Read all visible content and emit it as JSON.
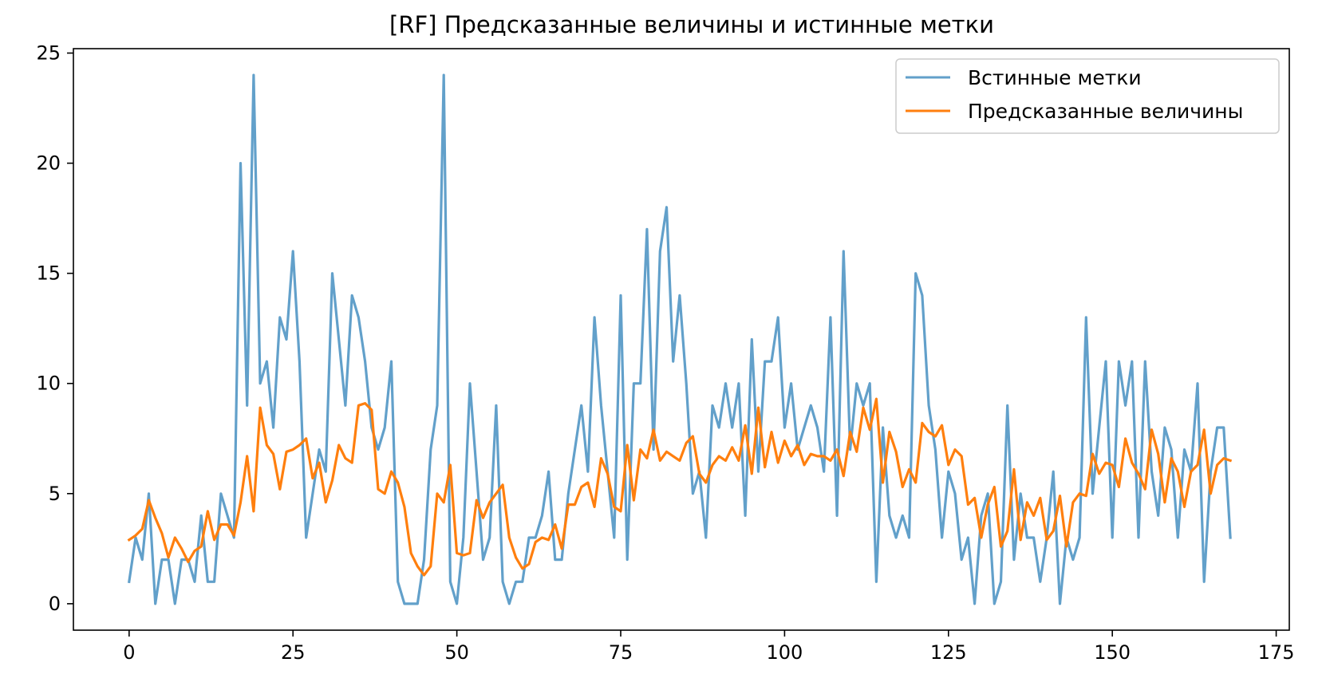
{
  "chart_data": {
    "type": "line",
    "title": "[RF] Предсказанные величины и истинные метки",
    "xlabel": "",
    "ylabel": "",
    "xlim": [
      -8.5,
      177
    ],
    "ylim": [
      -1.2,
      25.2
    ],
    "xticks": [
      0,
      25,
      50,
      75,
      100,
      125,
      150,
      175
    ],
    "yticks": [
      0,
      5,
      10,
      15,
      20,
      25
    ],
    "grid": false,
    "legend_position": "top-right",
    "series": [
      {
        "name": "Встинные метки",
        "color": "#1f77b4",
        "opacity": 0.7,
        "x_start": 0,
        "values": [
          1,
          3,
          2,
          5,
          0,
          2,
          2,
          0,
          2,
          2,
          1,
          4,
          1,
          1,
          5,
          4,
          3,
          20,
          9,
          24,
          10,
          11,
          8,
          13,
          12,
          16,
          11,
          3,
          5,
          7,
          6,
          15,
          12,
          9,
          14,
          13,
          11,
          8,
          7,
          8,
          11,
          1,
          0,
          0,
          0,
          2,
          7,
          9,
          24,
          1,
          0,
          3,
          10,
          6,
          2,
          3,
          9,
          1,
          0,
          1,
          1,
          3,
          3,
          4,
          6,
          2,
          2,
          5,
          7,
          9,
          6,
          13,
          9,
          6,
          3,
          14,
          2,
          10,
          10,
          17,
          7,
          16,
          18,
          11,
          14,
          10,
          5,
          6,
          3,
          9,
          8,
          10,
          8,
          10,
          4,
          12,
          6,
          11,
          11,
          13,
          8,
          10,
          7,
          8,
          9,
          8,
          6,
          13,
          4,
          16,
          7,
          10,
          9,
          10,
          1,
          8,
          4,
          3,
          4,
          3,
          15,
          14,
          9,
          7,
          3,
          6,
          5,
          2,
          3,
          0,
          4,
          5,
          0,
          1,
          9,
          2,
          5,
          3,
          3,
          1,
          3,
          6,
          0,
          3,
          2,
          3,
          13,
          5,
          8,
          11,
          3,
          11,
          9,
          11,
          3,
          11,
          6,
          4,
          8,
          7,
          3,
          7,
          6,
          10,
          1,
          6,
          8,
          8,
          3
        ]
      },
      {
        "name": "Предсказанные величины",
        "color": "#ff7f0e",
        "opacity": 1,
        "x_start": 0,
        "values": [
          2.9,
          3.1,
          3.4,
          4.7,
          3.9,
          3.2,
          2.1,
          3.0,
          2.5,
          1.9,
          2.4,
          2.6,
          4.2,
          2.9,
          3.6,
          3.6,
          3.1,
          4.6,
          6.7,
          4.2,
          8.9,
          7.2,
          6.8,
          5.2,
          6.9,
          7.0,
          7.2,
          7.5,
          5.7,
          6.4,
          4.6,
          5.6,
          7.2,
          6.6,
          6.4,
          9.0,
          9.1,
          8.8,
          5.2,
          5.0,
          6.0,
          5.5,
          4.4,
          2.3,
          1.7,
          1.3,
          1.7,
          5.0,
          4.6,
          6.3,
          2.3,
          2.2,
          2.3,
          4.7,
          3.9,
          4.6,
          5.0,
          5.4,
          3.0,
          2.1,
          1.6,
          1.8,
          2.8,
          3.0,
          2.9,
          3.6,
          2.5,
          4.5,
          4.5,
          5.3,
          5.5,
          4.4,
          6.6,
          5.9,
          4.4,
          4.2,
          7.2,
          4.7,
          7.0,
          6.6,
          7.9,
          6.5,
          6.9,
          6.7,
          6.5,
          7.3,
          7.6,
          5.9,
          5.5,
          6.3,
          6.7,
          6.5,
          7.1,
          6.5,
          8.1,
          5.9,
          8.9,
          6.2,
          7.8,
          6.4,
          7.4,
          6.7,
          7.2,
          6.3,
          6.8,
          6.7,
          6.7,
          6.5,
          7.0,
          5.8,
          7.8,
          6.9,
          8.9,
          7.9,
          9.3,
          5.5,
          7.8,
          6.9,
          5.3,
          6.1,
          5.5,
          8.2,
          7.8,
          7.6,
          8.1,
          6.3,
          7.0,
          6.7,
          4.5,
          4.8,
          3.0,
          4.5,
          5.3,
          2.6,
          3.3,
          6.1,
          2.9,
          4.6,
          4.0,
          4.8,
          2.9,
          3.3,
          4.9,
          2.6,
          4.6,
          5.0,
          4.9,
          6.8,
          5.9,
          6.4,
          6.3,
          5.3,
          7.5,
          6.4,
          5.9,
          5.2,
          7.9,
          6.8,
          4.6,
          6.6,
          6.0,
          4.4,
          6.0,
          6.3,
          7.9,
          5.0,
          6.3,
          6.6,
          6.5
        ]
      }
    ]
  }
}
